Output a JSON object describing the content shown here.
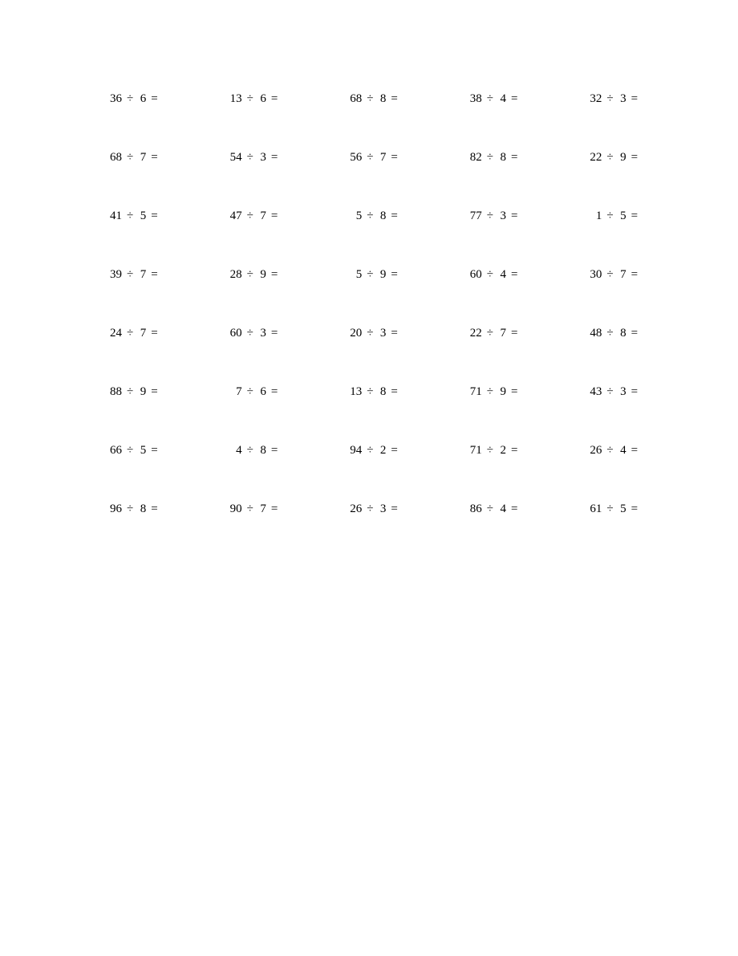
{
  "worksheet": {
    "type": "division-problems-grid",
    "operator_symbol": "÷",
    "equals_symbol": "=",
    "font_size": 15,
    "text_color": "#000000",
    "background_color": "#ffffff",
    "columns": 5,
    "rows": 8,
    "problems": [
      {
        "dividend": 36,
        "divisor": 6
      },
      {
        "dividend": 13,
        "divisor": 6
      },
      {
        "dividend": 68,
        "divisor": 8
      },
      {
        "dividend": 38,
        "divisor": 4
      },
      {
        "dividend": 32,
        "divisor": 3
      },
      {
        "dividend": 68,
        "divisor": 7
      },
      {
        "dividend": 54,
        "divisor": 3
      },
      {
        "dividend": 56,
        "divisor": 7
      },
      {
        "dividend": 82,
        "divisor": 8
      },
      {
        "dividend": 22,
        "divisor": 9
      },
      {
        "dividend": 41,
        "divisor": 5
      },
      {
        "dividend": 47,
        "divisor": 7
      },
      {
        "dividend": 5,
        "divisor": 8
      },
      {
        "dividend": 77,
        "divisor": 3
      },
      {
        "dividend": 1,
        "divisor": 5
      },
      {
        "dividend": 39,
        "divisor": 7
      },
      {
        "dividend": 28,
        "divisor": 9
      },
      {
        "dividend": 5,
        "divisor": 9
      },
      {
        "dividend": 60,
        "divisor": 4
      },
      {
        "dividend": 30,
        "divisor": 7
      },
      {
        "dividend": 24,
        "divisor": 7
      },
      {
        "dividend": 60,
        "divisor": 3
      },
      {
        "dividend": 20,
        "divisor": 3
      },
      {
        "dividend": 22,
        "divisor": 7
      },
      {
        "dividend": 48,
        "divisor": 8
      },
      {
        "dividend": 88,
        "divisor": 9
      },
      {
        "dividend": 7,
        "divisor": 6
      },
      {
        "dividend": 13,
        "divisor": 8
      },
      {
        "dividend": 71,
        "divisor": 9
      },
      {
        "dividend": 43,
        "divisor": 3
      },
      {
        "dividend": 66,
        "divisor": 5
      },
      {
        "dividend": 4,
        "divisor": 8
      },
      {
        "dividend": 94,
        "divisor": 2
      },
      {
        "dividend": 71,
        "divisor": 2
      },
      {
        "dividend": 26,
        "divisor": 4
      },
      {
        "dividend": 96,
        "divisor": 8
      },
      {
        "dividend": 90,
        "divisor": 7
      },
      {
        "dividend": 26,
        "divisor": 3
      },
      {
        "dividend": 86,
        "divisor": 4
      },
      {
        "dividend": 61,
        "divisor": 5
      }
    ]
  }
}
